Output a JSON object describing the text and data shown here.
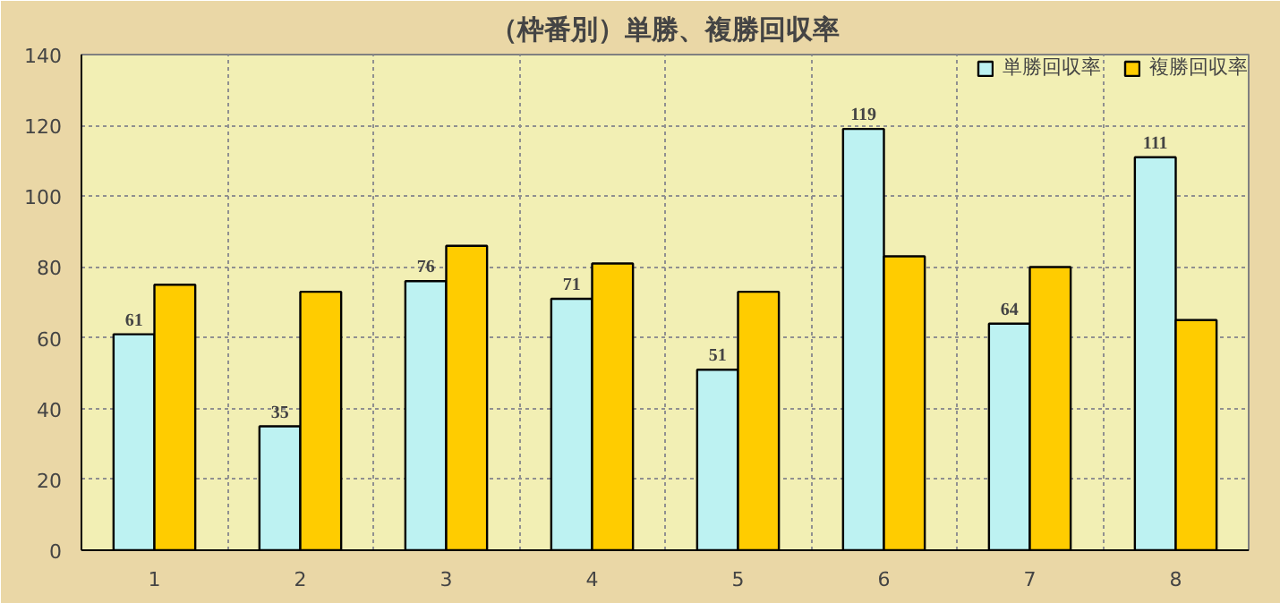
{
  "chart_data": {
    "type": "bar",
    "title": "（枠番別）単勝、複勝回収率",
    "categories": [
      "1",
      "2",
      "3",
      "4",
      "5",
      "6",
      "7",
      "8"
    ],
    "series": [
      {
        "name": "単勝回収率",
        "color": "#bdf2f2",
        "values": [
          61,
          35,
          76,
          71,
          51,
          119,
          64,
          111
        ],
        "value_labels": [
          "61",
          "35",
          "76",
          "71",
          "51",
          "119",
          "64",
          "111"
        ]
      },
      {
        "name": "複勝回収率",
        "color": "#ffcc00",
        "values": [
          75,
          73,
          86,
          81,
          73,
          83,
          80,
          65
        ]
      }
    ],
    "ylim": [
      0,
      140
    ],
    "yticks": [
      0,
      20,
      40,
      60,
      80,
      100,
      120,
      140
    ],
    "grid": true,
    "legend": "top right"
  }
}
